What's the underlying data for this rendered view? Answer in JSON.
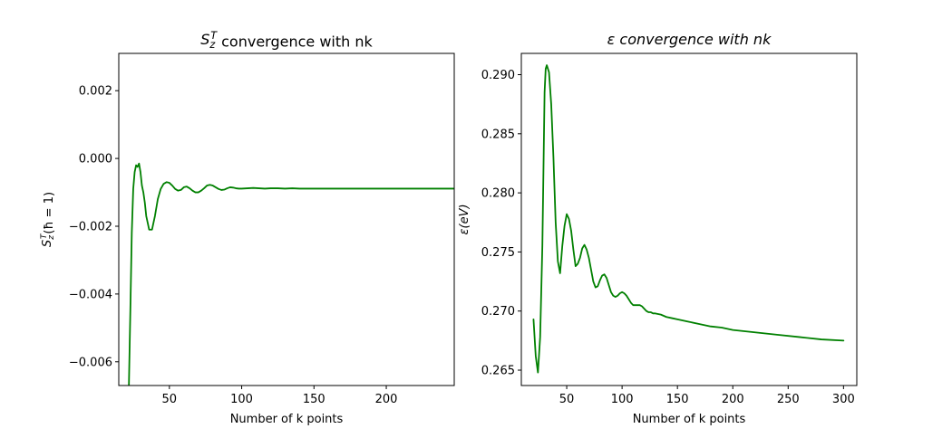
{
  "chart_data": [
    {
      "type": "line",
      "title": "S_z^T convergence with nk",
      "xlabel": "Number of k points",
      "ylabel": "S_z^T(ħ = 1)",
      "xlim": [
        15,
        247
      ],
      "ylim": [
        -0.0067,
        0.0031
      ],
      "xticks": [
        50,
        100,
        150,
        200
      ],
      "xtick_labels": [
        "50",
        "100",
        "150",
        "200"
      ],
      "yticks": [
        0.002,
        0.0,
        -0.002,
        -0.004,
        -0.006
      ],
      "ytick_labels": [
        "0.002",
        "0.000",
        "−0.002",
        "−0.004",
        "−0.006"
      ],
      "grid": false,
      "color": "#008000",
      "series": [
        {
          "x": [
            22,
            23,
            24,
            25,
            26,
            27,
            28,
            29,
            30,
            31,
            32,
            33,
            34,
            35,
            36,
            37,
            38,
            39,
            40,
            42,
            44,
            46,
            48,
            50,
            52,
            54,
            56,
            58,
            60,
            62,
            64,
            66,
            68,
            70,
            72,
            74,
            76,
            78,
            80,
            82,
            84,
            86,
            88,
            90,
            92,
            94,
            96,
            98,
            100,
            104,
            108,
            112,
            116,
            120,
            125,
            130,
            135,
            140,
            150,
            160,
            170,
            180,
            200,
            220,
            247
          ],
          "y": [
            -0.0067,
            -0.0045,
            -0.0022,
            -0.0009,
            -0.0004,
            -0.0002,
            -0.00025,
            -0.00015,
            -0.0004,
            -0.0008,
            -0.001,
            -0.0013,
            -0.0017,
            -0.0019,
            -0.0021,
            -0.0021,
            -0.0021,
            -0.0019,
            -0.0017,
            -0.0012,
            -0.0009,
            -0.00075,
            -0.0007,
            -0.00072,
            -0.0008,
            -0.0009,
            -0.00095,
            -0.00093,
            -0.00085,
            -0.00083,
            -0.00088,
            -0.00095,
            -0.001,
            -0.001,
            -0.00095,
            -0.00088,
            -0.0008,
            -0.00078,
            -0.0008,
            -0.00085,
            -0.0009,
            -0.00093,
            -0.00092,
            -0.00088,
            -0.00085,
            -0.00086,
            -0.00088,
            -0.00089,
            -0.00089,
            -0.00088,
            -0.00087,
            -0.00088,
            -0.00089,
            -0.00088,
            -0.00088,
            -0.00089,
            -0.00088,
            -0.00089,
            -0.00089,
            -0.00089,
            -0.00089,
            -0.00089,
            -0.00089,
            -0.00089,
            -0.00089
          ]
        }
      ]
    },
    {
      "type": "line",
      "title": "ε convergence with nk",
      "xlabel": "Number of k points",
      "ylabel": "ε(eV)",
      "xlim": [
        9,
        312
      ],
      "ylim": [
        0.2637,
        0.2918
      ],
      "xticks": [
        50,
        100,
        150,
        200,
        250,
        300
      ],
      "xtick_labels": [
        "50",
        "100",
        "150",
        "200",
        "250",
        "300"
      ],
      "yticks": [
        0.265,
        0.27,
        0.275,
        0.28,
        0.285,
        0.29
      ],
      "ytick_labels": [
        "0.265",
        "0.270",
        "0.275",
        "0.280",
        "0.285",
        "0.290"
      ],
      "grid": false,
      "color": "#008000",
      "series": [
        {
          "x": [
            20,
            22,
            24,
            26,
            28,
            30,
            31,
            32,
            34,
            36,
            38,
            40,
            42,
            44,
            46,
            48,
            50,
            52,
            54,
            56,
            58,
            60,
            62,
            64,
            66,
            68,
            70,
            72,
            74,
            76,
            78,
            80,
            82,
            84,
            86,
            88,
            90,
            92,
            94,
            96,
            98,
            100,
            102,
            104,
            106,
            108,
            110,
            112,
            114,
            116,
            118,
            120,
            122,
            124,
            126,
            128,
            130,
            135,
            140,
            145,
            150,
            160,
            170,
            180,
            190,
            200,
            220,
            240,
            260,
            280,
            300
          ],
          "y": [
            0.2693,
            0.2662,
            0.2648,
            0.2678,
            0.2755,
            0.2885,
            0.2905,
            0.2908,
            0.2902,
            0.2875,
            0.283,
            0.2775,
            0.2742,
            0.2732,
            0.2755,
            0.2772,
            0.2782,
            0.2778,
            0.2768,
            0.2752,
            0.2738,
            0.274,
            0.2745,
            0.2753,
            0.2756,
            0.2752,
            0.2745,
            0.2735,
            0.2725,
            0.272,
            0.2721,
            0.2726,
            0.273,
            0.2731,
            0.2728,
            0.2722,
            0.2716,
            0.2713,
            0.2712,
            0.2713,
            0.2715,
            0.2716,
            0.2715,
            0.2713,
            0.271,
            0.2707,
            0.2705,
            0.2705,
            0.2705,
            0.2705,
            0.2704,
            0.2702,
            0.27,
            0.2699,
            0.2699,
            0.2698,
            0.2698,
            0.2697,
            0.2695,
            0.2694,
            0.2693,
            0.2691,
            0.2689,
            0.2687,
            0.2686,
            0.2684,
            0.2682,
            0.268,
            0.2678,
            0.2676,
            0.2675
          ]
        }
      ]
    }
  ]
}
